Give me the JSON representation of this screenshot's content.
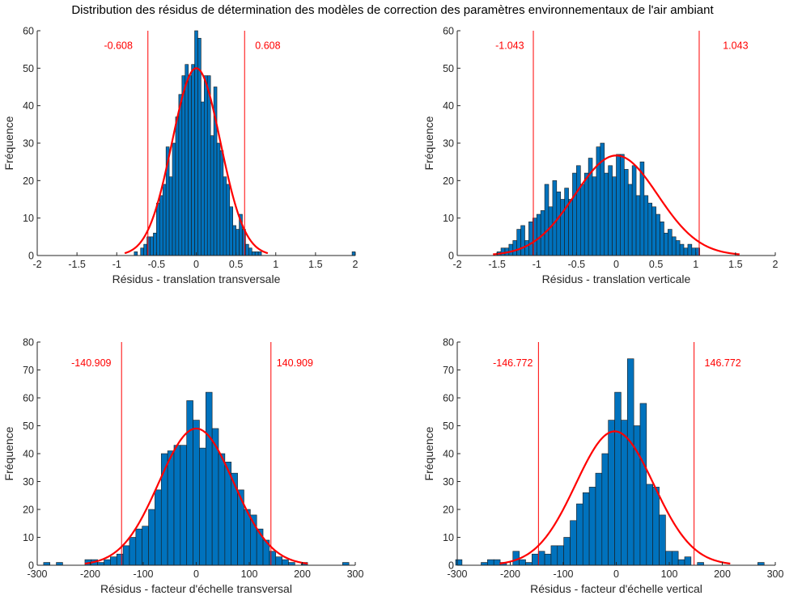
{
  "figure": {
    "title": "Distribution des résidus de détermination des modèles de correction des paramètres environnementaux de l'air ambiant",
    "colors": {
      "bar_fill": "#0072BD",
      "bar_edge": "#1a1a1a",
      "curve": "#FF0000",
      "threshold": "#FF0000",
      "axis": "#262626"
    }
  },
  "chart_data": [
    {
      "type": "bar",
      "subtype": "histogram",
      "xlabel": "Résidus - translation transversale",
      "ylabel": "Fréquence",
      "xlim": [
        -2,
        2
      ],
      "ylim": [
        0,
        60
      ],
      "xticks": [
        -2,
        -1.5,
        -1,
        -0.5,
        0,
        0.5,
        1,
        1.5,
        2
      ],
      "xtick_labels": [
        "-2",
        "-1.5",
        "-1",
        "-0.5",
        "0",
        "0.5",
        "1",
        "1.5",
        "2"
      ],
      "yticks": [
        0,
        10,
        20,
        30,
        40,
        50,
        60
      ],
      "ytick_labels": [
        "0",
        "10",
        "20",
        "30",
        "40",
        "50",
        "60"
      ],
      "bin_start": -0.78,
      "bin_width": 0.04,
      "values": [
        1,
        0,
        2,
        3,
        5,
        5,
        6,
        14,
        16,
        19,
        29,
        21,
        30,
        37,
        43,
        48,
        51,
        48,
        51,
        60,
        58,
        41,
        48,
        48,
        32,
        45,
        30,
        28,
        21,
        19,
        13,
        8,
        7,
        11,
        7,
        3,
        2,
        1,
        1,
        1
      ],
      "outliers": [
        {
          "x": 1.98,
          "value": 1
        }
      ],
      "fit_curve": {
        "mean": 0.0,
        "std": 0.304,
        "peak": 50,
        "range": [
          -0.9,
          0.9
        ]
      },
      "thresholds": [
        -0.608,
        0.608
      ],
      "annotations": [
        "-0.608",
        "0.608"
      ]
    },
    {
      "type": "bar",
      "subtype": "histogram",
      "xlabel": "Résidus - translation verticale",
      "ylabel": "Fréquence",
      "xlim": [
        -2,
        2
      ],
      "ylim": [
        0,
        60
      ],
      "xticks": [
        -2,
        -1.5,
        -1,
        -0.5,
        0,
        0.5,
        1,
        1.5,
        2
      ],
      "xtick_labels": [
        "-2",
        "-1.5",
        "-1",
        "-0.5",
        "0",
        "0.5",
        "1",
        "1.5",
        "2"
      ],
      "yticks": [
        0,
        10,
        20,
        30,
        40,
        50,
        60
      ],
      "ytick_labels": [
        "0",
        "10",
        "20",
        "30",
        "40",
        "50",
        "60"
      ],
      "bin_start": -1.5,
      "bin_width": 0.05,
      "values": [
        1,
        2,
        2,
        3,
        4,
        7,
        8,
        4,
        9,
        10,
        11,
        12,
        19,
        13,
        20,
        17,
        15,
        18,
        15,
        22,
        24,
        19,
        22,
        26,
        21,
        29,
        30,
        22,
        24,
        21,
        27,
        27,
        23,
        19,
        24,
        16,
        25,
        16,
        14,
        13,
        11,
        9,
        6,
        7,
        5,
        4,
        3,
        2,
        3,
        2,
        2
      ],
      "outliers": [],
      "fit_curve": {
        "mean": 0.0,
        "std": 0.521,
        "peak": 26.7,
        "range": [
          -1.55,
          1.55
        ]
      },
      "thresholds": [
        -1.043,
        1.043
      ],
      "annotations": [
        "-1.043",
        "1.043"
      ]
    },
    {
      "type": "bar",
      "subtype": "histogram",
      "xlabel": "Résidus - facteur d'échelle transversal",
      "ylabel": "Fréquence",
      "xlim": [
        -300,
        300
      ],
      "ylim": [
        0,
        80
      ],
      "xticks": [
        -300,
        -200,
        -100,
        0,
        100,
        200,
        300
      ],
      "xtick_labels": [
        "-300",
        "-200",
        "-100",
        "0",
        "100",
        "200",
        "300"
      ],
      "yticks": [
        0,
        10,
        20,
        30,
        40,
        50,
        60,
        70,
        80
      ],
      "ytick_labels": [
        "0",
        "10",
        "20",
        "30",
        "40",
        "50",
        "60",
        "70",
        "80"
      ],
      "bin_start": -210,
      "bin_width": 12,
      "values": [
        2,
        2,
        1,
        2,
        3,
        4,
        7,
        10,
        13,
        14,
        20,
        27,
        40,
        41,
        43,
        43,
        59,
        52,
        42,
        62,
        49,
        40,
        37,
        33,
        27,
        20,
        18,
        13,
        9,
        5,
        3,
        2,
        1,
        0,
        1
      ],
      "outliers": [
        {
          "x": -282,
          "value": 1
        },
        {
          "x": -258,
          "value": 1
        },
        {
          "x": 282,
          "value": 1
        }
      ],
      "fit_curve": {
        "mean": 0.0,
        "std": 70.45,
        "peak": 49,
        "range": [
          -210,
          210
        ]
      },
      "thresholds": [
        -140.909,
        140.909
      ],
      "annotations": [
        "-140.909",
        "140.909"
      ]
    },
    {
      "type": "bar",
      "subtype": "histogram",
      "xlabel": "Résidus - facteur d'échelle vertical",
      "ylabel": "Fréquence",
      "xlim": [
        -300,
        300
      ],
      "ylim": [
        0,
        80
      ],
      "xticks": [
        -300,
        -200,
        -100,
        0,
        100,
        200,
        300
      ],
      "xtick_labels": [
        "-300",
        "-200",
        "-100",
        "0",
        "100",
        "200",
        "300"
      ],
      "yticks": [
        0,
        10,
        20,
        30,
        40,
        50,
        60,
        70,
        80
      ],
      "ytick_labels": [
        "0",
        "10",
        "20",
        "30",
        "40",
        "50",
        "60",
        "70",
        "80"
      ],
      "bin_start": -255,
      "bin_width": 12,
      "values": [
        1,
        2,
        2,
        1,
        0,
        5,
        2,
        1,
        4,
        5,
        4,
        7,
        7,
        10,
        16,
        22,
        26,
        28,
        33,
        40,
        52,
        62,
        52,
        74,
        50,
        58,
        29,
        28,
        18,
        5,
        5,
        2,
        3,
        0,
        1
      ],
      "outliers": [
        {
          "x": -297,
          "value": 2
        },
        {
          "x": 273,
          "value": 1
        }
      ],
      "fit_curve": {
        "mean": -3,
        "std": 73.39,
        "peak": 48,
        "range": [
          -220,
          215
        ]
      },
      "thresholds": [
        -146.772,
        146.772
      ],
      "annotations": [
        "-146.772",
        "146.772"
      ]
    }
  ]
}
